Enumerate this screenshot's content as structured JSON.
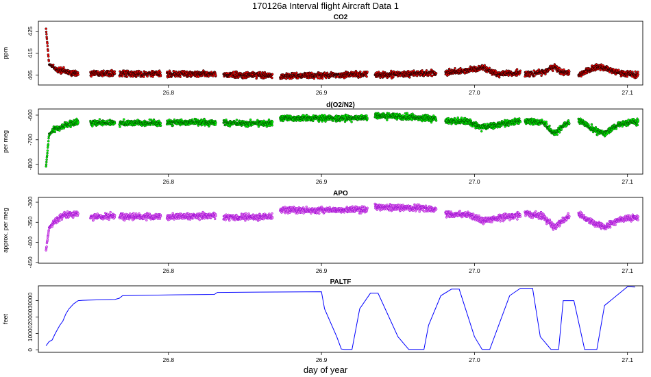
{
  "title": "170126a   Interval flight Aircraft Data 1",
  "xlabel": "day of year",
  "chart_data": [
    {
      "type": "scatter",
      "title": "CO2",
      "ylabel": "ppm",
      "xlim": [
        26.715,
        27.11
      ],
      "ylim": [
        400.5,
        429.5
      ],
      "xticks": [
        "26.8",
        "26.9",
        "27.0",
        "27.1"
      ],
      "yticks": [
        "405",
        "415",
        "425"
      ],
      "point_color": "#ff0000",
      "outline_color": "#000000",
      "segments": [
        {
          "x": [
            26.72,
            26.722,
            26.724,
            26.727,
            26.731,
            26.736,
            26.741
          ],
          "y": [
            426,
            410,
            409,
            407.5,
            407,
            406,
            405.5
          ]
        },
        {
          "x": [
            26.749,
            26.765
          ],
          "y": [
            406,
            406
          ]
        },
        {
          "x": [
            26.768,
            26.795
          ],
          "y": [
            405.5,
            405.5
          ]
        },
        {
          "x": [
            26.799,
            26.831
          ],
          "y": [
            405.5,
            405.5
          ]
        },
        {
          "x": [
            26.836,
            26.868
          ],
          "y": [
            405,
            405
          ]
        },
        {
          "x": [
            26.873,
            26.905,
            26.93
          ],
          "y": [
            404.5,
            405,
            405.5
          ]
        },
        {
          "x": [
            26.935,
            26.975
          ],
          "y": [
            405,
            406
          ]
        },
        {
          "x": [
            26.981,
            26.995,
            27.005,
            27.015,
            27.03
          ],
          "y": [
            406,
            407,
            408.5,
            405.5,
            406
          ]
        },
        {
          "x": [
            27.033,
            27.045,
            27.052,
            27.057,
            27.062
          ],
          "y": [
            405.5,
            406,
            409,
            406.5,
            406
          ]
        },
        {
          "x": [
            27.068,
            27.08,
            27.085,
            27.095,
            27.107
          ],
          "y": [
            405,
            409,
            408,
            406,
            405
          ]
        }
      ]
    },
    {
      "type": "scatter",
      "title": "d(O2/N2)",
      "ylabel": "per meg",
      "xlim": [
        26.715,
        27.11
      ],
      "ylim": [
        -840,
        -575
      ],
      "xticks": [
        "26.8",
        "26.9",
        "27.0",
        "27.1"
      ],
      "yticks": [
        "-600",
        "-700",
        "-800"
      ],
      "point_color": "#00ff00",
      "outline_color": "#004400",
      "segments": [
        {
          "x": [
            26.72,
            26.722,
            26.725,
            26.73,
            26.735,
            26.741
          ],
          "y": [
            -810,
            -680,
            -660,
            -650,
            -635,
            -630
          ]
        },
        {
          "x": [
            26.749,
            26.765
          ],
          "y": [
            -632,
            -630
          ]
        },
        {
          "x": [
            26.768,
            26.795
          ],
          "y": [
            -632,
            -632
          ]
        },
        {
          "x": [
            26.799,
            26.831
          ],
          "y": [
            -630,
            -630
          ]
        },
        {
          "x": [
            26.836,
            26.868
          ],
          "y": [
            -632,
            -632
          ]
        },
        {
          "x": [
            26.873,
            26.93
          ],
          "y": [
            -612,
            -612
          ]
        },
        {
          "x": [
            26.935,
            26.955,
            26.975
          ],
          "y": [
            -602,
            -607,
            -615
          ]
        },
        {
          "x": [
            26.981,
            26.995,
            27.005,
            27.015,
            27.03
          ],
          "y": [
            -625,
            -625,
            -650,
            -640,
            -625
          ]
        },
        {
          "x": [
            27.033,
            27.045,
            27.052,
            27.057,
            27.062
          ],
          "y": [
            -622,
            -630,
            -675,
            -650,
            -630
          ]
        },
        {
          "x": [
            27.068,
            27.08,
            27.085,
            27.095,
            27.107
          ],
          "y": [
            -620,
            -665,
            -675,
            -635,
            -625
          ]
        }
      ]
    },
    {
      "type": "scatter",
      "title": "APO",
      "ylabel": "approx. per meg",
      "xlim": [
        26.715,
        27.11
      ],
      "ylim": [
        -452,
        -288
      ],
      "xticks": [
        "26.8",
        "26.9",
        "27.0",
        "27.1"
      ],
      "yticks": [
        "-300",
        "-350",
        "-400",
        "-450"
      ],
      "point_color": "#ee82ee",
      "outline_color": "#9400d3",
      "segments": [
        {
          "x": [
            26.72,
            26.722,
            26.725,
            26.73,
            26.735,
            26.741
          ],
          "y": [
            -420,
            -365,
            -350,
            -335,
            -330,
            -328
          ]
        },
        {
          "x": [
            26.749,
            26.765
          ],
          "y": [
            -338,
            -335
          ]
        },
        {
          "x": [
            26.768,
            26.795
          ],
          "y": [
            -336,
            -336
          ]
        },
        {
          "x": [
            26.799,
            26.831
          ],
          "y": [
            -337,
            -333
          ]
        },
        {
          "x": [
            26.836,
            26.868
          ],
          "y": [
            -338,
            -336
          ]
        },
        {
          "x": [
            26.873,
            26.93
          ],
          "y": [
            -320,
            -318
          ]
        },
        {
          "x": [
            26.935,
            26.955,
            26.975
          ],
          "y": [
            -312,
            -313,
            -318
          ]
        },
        {
          "x": [
            26.981,
            26.995,
            27.005,
            27.015,
            27.03
          ],
          "y": [
            -330,
            -330,
            -345,
            -340,
            -332
          ]
        },
        {
          "x": [
            27.033,
            27.045,
            27.052,
            27.057,
            27.062
          ],
          "y": [
            -328,
            -335,
            -362,
            -348,
            -335
          ]
        },
        {
          "x": [
            27.068,
            27.08,
            27.085,
            27.095,
            27.107
          ],
          "y": [
            -330,
            -355,
            -362,
            -342,
            -338
          ]
        }
      ]
    },
    {
      "type": "line",
      "title": "PALTF",
      "ylabel": "feet",
      "xlim": [
        26.715,
        27.11
      ],
      "ylim": [
        -1500,
        39000
      ],
      "xticks": [
        "26.8",
        "26.9",
        "27.0",
        "27.1"
      ],
      "yticks": [
        "0",
        "10000",
        "20000",
        "30000"
      ],
      "line_color": "#0000ff",
      "x": [
        26.72,
        26.722,
        26.724,
        26.726,
        26.729,
        26.731,
        26.733,
        26.735,
        26.738,
        26.741,
        26.744,
        26.755,
        26.765,
        26.768,
        26.77,
        26.8,
        26.83,
        26.832,
        26.86,
        26.88,
        26.9,
        26.902,
        26.91,
        26.913,
        26.915,
        26.92,
        26.925,
        26.932,
        26.937,
        26.95,
        26.957,
        26.96,
        26.967,
        26.97,
        26.978,
        26.985,
        26.988,
        26.99,
        27.0,
        27.005,
        27.01,
        27.023,
        27.03,
        27.033,
        27.038,
        27.043,
        27.05,
        27.055,
        27.058,
        27.065,
        27.072,
        27.075,
        27.08,
        27.085,
        27.1,
        27.105
      ],
      "y": [
        2500,
        5000,
        6000,
        10000,
        15000,
        17500,
        22000,
        25000,
        28000,
        30000,
        30200,
        30500,
        30700,
        31500,
        33000,
        33500,
        33800,
        35000,
        35200,
        35300,
        35400,
        25000,
        8000,
        500,
        300,
        300,
        25000,
        34500,
        34500,
        8000,
        300,
        300,
        300,
        15000,
        33000,
        37000,
        37000,
        37000,
        8000,
        300,
        300,
        33000,
        37500,
        37500,
        37500,
        8000,
        300,
        300,
        30000,
        30000,
        300,
        300,
        300,
        27000,
        38500,
        38300
      ]
    }
  ]
}
